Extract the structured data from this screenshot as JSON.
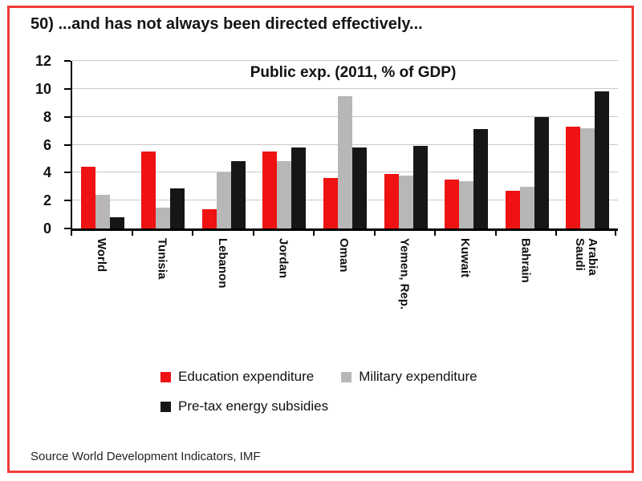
{
  "frame": {
    "border_color": "#ef3b38"
  },
  "header": {
    "title": "50) ...and has not always been directed effectively..."
  },
  "chart_data": {
    "type": "bar",
    "title": "Public exp. (2011, % of GDP)",
    "categories": [
      "World",
      "Tunisia",
      "Lebanon",
      "Jordan",
      "Oman",
      "Yemen, Rep.",
      "Kuwait",
      "Bahrain",
      "Saudi Arabia"
    ],
    "category_display_lines": [
      [
        "World"
      ],
      [
        "Tunisia"
      ],
      [
        "Lebanon"
      ],
      [
        "Jordan"
      ],
      [
        "Oman"
      ],
      [
        "Yemen, Rep."
      ],
      [
        "Kuwait"
      ],
      [
        "Bahrain"
      ],
      [
        "Saudi",
        "Arabia"
      ]
    ],
    "series": [
      {
        "name": "Education expenditure",
        "color": "#ee1212",
        "values": [
          4.4,
          5.5,
          1.4,
          5.5,
          3.6,
          3.9,
          3.5,
          2.7,
          7.3
        ]
      },
      {
        "name": "Military expenditure",
        "color": "#b7b7b7",
        "values": [
          2.4,
          1.5,
          4.0,
          4.8,
          9.5,
          3.8,
          3.4,
          3.0,
          7.2
        ]
      },
      {
        "name": "Pre-tax energy subsidies",
        "color": "#161616",
        "values": [
          0.8,
          2.9,
          4.8,
          5.8,
          5.8,
          5.9,
          7.1,
          8.0,
          9.8
        ]
      }
    ],
    "xlabel": "",
    "ylabel": "",
    "ylim": [
      0,
      12
    ],
    "yticks": [
      0,
      2,
      4,
      6,
      8,
      10,
      12
    ],
    "grid": true,
    "gridline_color": "#c9c9c9",
    "legend_position": "bottom"
  },
  "footer": {
    "source": "Source World Development Indicators, IMF"
  }
}
